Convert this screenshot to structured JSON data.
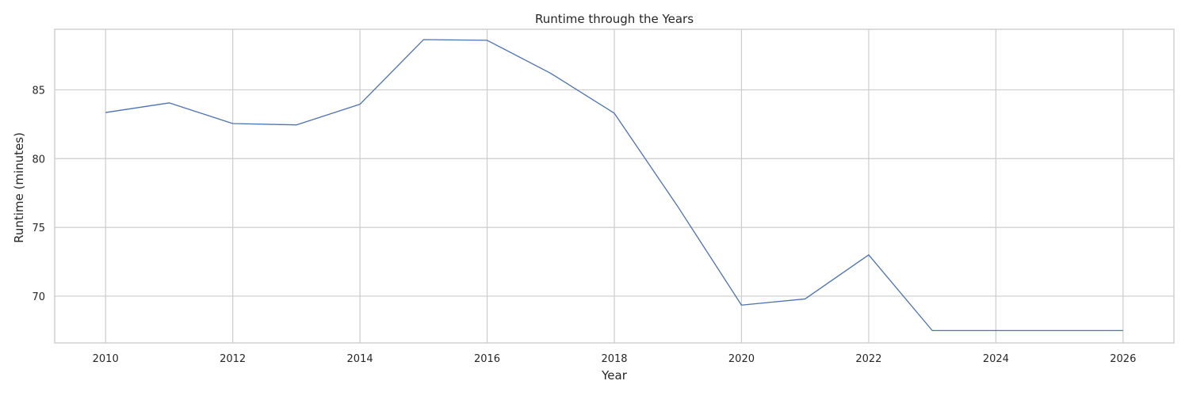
{
  "chart_data": {
    "type": "line",
    "title": "Runtime through the Years",
    "xlabel": "Year",
    "ylabel": "Runtime (minutes)",
    "xlim": [
      2009.2,
      2026.8
    ],
    "ylim": [
      66.6,
      89.4
    ],
    "xticks": [
      2010,
      2012,
      2014,
      2016,
      2018,
      2020,
      2022,
      2024,
      2026
    ],
    "yticks": [
      70,
      75,
      80,
      85
    ],
    "grid": true,
    "color": "#4c72b0",
    "x": [
      2010,
      2011,
      2012,
      2013,
      2014,
      2015,
      2016,
      2017,
      2018,
      2019,
      2020,
      2021,
      2022,
      2023,
      2024,
      2025,
      2026
    ],
    "y": [
      83.35,
      84.05,
      82.55,
      82.45,
      83.95,
      88.65,
      88.6,
      86.2,
      83.3,
      76.5,
      69.35,
      69.8,
      73.0,
      67.5,
      67.5,
      67.5,
      67.5
    ]
  }
}
